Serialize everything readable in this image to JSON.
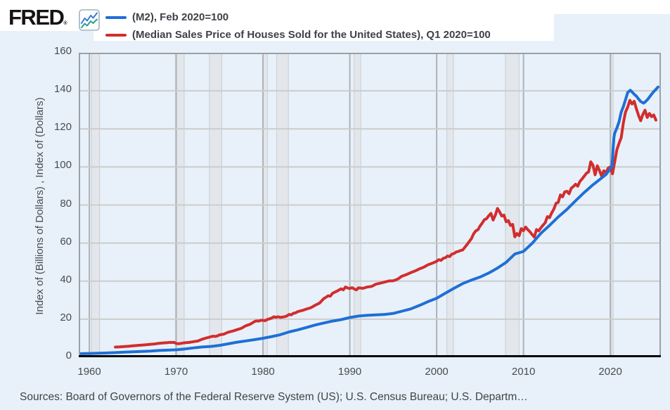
{
  "header": {
    "logo_text": "FRED",
    "registered_mark": "®"
  },
  "legend": [
    {
      "label": "(M2), Feb 2020=100"
    },
    {
      "label": "(Median Sales Price of Houses Sold for the United States), Q1 2020=100"
    }
  ],
  "footer": {
    "sources": "Sources: Board of Governors of the Federal Reserve System (US); U.S. Census Bureau; U.S. Departm…"
  },
  "colors": {
    "background": "#e8f1f9",
    "plot_background": "#ffffff",
    "series_blue": "#1f6fd6",
    "series_red": "#d22d2e",
    "grid_horizontal": "#cccccc",
    "grid_vertical": "#adb2b8",
    "recession_band": "#e3e7ec",
    "recession_band_edge": "#c9ced4",
    "plot_border": "#9aa0a6",
    "axis_line": "#000000",
    "fred_icon_blue": "#3a7bd5",
    "fred_icon_teal": "#2e9e8f"
  },
  "chart_data": {
    "type": "line",
    "title": "",
    "xlabel": "",
    "ylabel": "Index of (Billions of Dollars) , Index of (Dollars)",
    "xlim": [
      1958.78,
      2025.82
    ],
    "ylim": [
      0,
      160
    ],
    "xticks": [
      1960,
      1970,
      1980,
      1990,
      2000,
      2010,
      2020
    ],
    "yticks": [
      0,
      20,
      40,
      60,
      80,
      100,
      120,
      140,
      160
    ],
    "grid": true,
    "legend_position": "top-left",
    "recession_bands": [
      [
        1960.25,
        1961.17
      ],
      [
        1969.92,
        1970.92
      ],
      [
        1973.83,
        1975.25
      ],
      [
        1980.0,
        1980.5
      ],
      [
        1981.58,
        1982.92
      ],
      [
        1990.5,
        1991.25
      ],
      [
        2001.17,
        2001.92
      ],
      [
        2007.92,
        2009.5
      ],
      [
        2020.08,
        2020.33
      ]
    ],
    "series": [
      {
        "name": "(M2), Feb 2020=100",
        "color": "#1f6fd6",
        "points": [
          [
            1959,
            1.9
          ],
          [
            1960,
            2.0
          ],
          [
            1961,
            2.1
          ],
          [
            1962,
            2.27
          ],
          [
            1963,
            2.45
          ],
          [
            1964,
            2.65
          ],
          [
            1965,
            2.86
          ],
          [
            1966,
            3.05
          ],
          [
            1967,
            3.26
          ],
          [
            1968,
            3.53
          ],
          [
            1969,
            3.75
          ],
          [
            1970,
            3.9
          ],
          [
            1971,
            4.36
          ],
          [
            1972,
            4.91
          ],
          [
            1973,
            5.39
          ],
          [
            1974,
            5.7
          ],
          [
            1975,
            6.23
          ],
          [
            1976,
            7.04
          ],
          [
            1977,
            7.9
          ],
          [
            1978,
            8.56
          ],
          [
            1979,
            9.23
          ],
          [
            1980,
            9.97
          ],
          [
            1981,
            10.87
          ],
          [
            1982,
            11.85
          ],
          [
            1983,
            13.31
          ],
          [
            1984,
            14.38
          ],
          [
            1985,
            15.64
          ],
          [
            1986,
            16.92
          ],
          [
            1987,
            17.98
          ],
          [
            1988,
            18.98
          ],
          [
            1989,
            19.76
          ],
          [
            1990,
            20.87
          ],
          [
            1991,
            21.64
          ],
          [
            1992,
            22.04
          ],
          [
            1993,
            22.27
          ],
          [
            1994,
            22.49
          ],
          [
            1995,
            23.03
          ],
          [
            1996,
            24.22
          ],
          [
            1997,
            25.38
          ],
          [
            1998,
            27.19
          ],
          [
            1999,
            29.22
          ],
          [
            2000,
            31.01
          ],
          [
            2001,
            33.66
          ],
          [
            2002,
            36.26
          ],
          [
            2003,
            38.72
          ],
          [
            2004,
            40.53
          ],
          [
            2005,
            42.16
          ],
          [
            2006,
            44.28
          ],
          [
            2007,
            46.87
          ],
          [
            2008,
            49.85
          ],
          [
            2009,
            54.25
          ],
          [
            2010,
            55.61
          ],
          [
            2011,
            59.9
          ],
          [
            2012,
            65.1
          ],
          [
            2013,
            69.3
          ],
          [
            2014,
            73.7
          ],
          [
            2015,
            77.7
          ],
          [
            2016,
            82.2
          ],
          [
            2017,
            86.6
          ],
          [
            2018,
            90.6
          ],
          [
            2019,
            94.2
          ],
          [
            2019.5,
            96.0
          ],
          [
            2020.08,
            99.5
          ],
          [
            2020.17,
            100
          ],
          [
            2020.25,
            104.1
          ],
          [
            2020.33,
            110.2
          ],
          [
            2020.42,
            115.6
          ],
          [
            2020.5,
            117.7
          ],
          [
            2020.75,
            120.4
          ],
          [
            2021,
            123.7
          ],
          [
            2021.25,
            128.8
          ],
          [
            2021.5,
            131.7
          ],
          [
            2021.75,
            135.3
          ],
          [
            2022,
            139.1
          ],
          [
            2022.3,
            140.3
          ],
          [
            2022.5,
            139.4
          ],
          [
            2022.75,
            138.2
          ],
          [
            2023,
            137.2
          ],
          [
            2023.25,
            135.7
          ],
          [
            2023.5,
            134.4
          ],
          [
            2023.83,
            133.5
          ],
          [
            2024,
            134.1
          ],
          [
            2024.25,
            135.2
          ],
          [
            2024.5,
            136.7
          ],
          [
            2024.75,
            138.2
          ],
          [
            2025,
            139.6
          ],
          [
            2025.25,
            140.8
          ],
          [
            2025.5,
            142
          ]
        ]
      },
      {
        "name": "(Median Sales Price of Houses Sold for the United States), Q1 2020=100",
        "color": "#d22d2e",
        "points": [
          [
            1963,
            5.35
          ],
          [
            1963.5,
            5.45
          ],
          [
            1964,
            5.65
          ],
          [
            1964.5,
            5.78
          ],
          [
            1965,
            6.0
          ],
          [
            1965.5,
            6.18
          ],
          [
            1966,
            6.4
          ],
          [
            1966.5,
            6.56
          ],
          [
            1967,
            6.8
          ],
          [
            1967.5,
            7.0
          ],
          [
            1968,
            7.3
          ],
          [
            1968.5,
            7.55
          ],
          [
            1969,
            7.7
          ],
          [
            1969.25,
            7.85
          ],
          [
            1969.5,
            7.75
          ],
          [
            1969.75,
            7.85
          ],
          [
            1970,
            7.25
          ],
          [
            1970.25,
            7.1
          ],
          [
            1970.5,
            7.25
          ],
          [
            1970.75,
            7.45
          ],
          [
            1971,
            7.6
          ],
          [
            1971.5,
            7.8
          ],
          [
            1972,
            8.2
          ],
          [
            1972.5,
            8.55
          ],
          [
            1973,
            9.5
          ],
          [
            1973.5,
            10.15
          ],
          [
            1974,
            10.8
          ],
          [
            1974.25,
            11.1
          ],
          [
            1974.5,
            10.95
          ],
          [
            1974.75,
            11.2
          ],
          [
            1975,
            11.8
          ],
          [
            1975.5,
            12.15
          ],
          [
            1976,
            13.2
          ],
          [
            1976.5,
            13.75
          ],
          [
            1977,
            14.5
          ],
          [
            1977.5,
            15.2
          ],
          [
            1978,
            16.5
          ],
          [
            1978.5,
            17.3
          ],
          [
            1979,
            18.7
          ],
          [
            1979.25,
            19.1
          ],
          [
            1979.5,
            19.0
          ],
          [
            1979.75,
            19.4
          ],
          [
            1980,
            19.4
          ],
          [
            1980.25,
            19.2
          ],
          [
            1980.5,
            19.85
          ],
          [
            1980.75,
            20.2
          ],
          [
            1981,
            20.6
          ],
          [
            1981.25,
            21.3
          ],
          [
            1981.5,
            21.0
          ],
          [
            1981.75,
            21.3
          ],
          [
            1982,
            20.9
          ],
          [
            1982.25,
            21.15
          ],
          [
            1982.5,
            21.3
          ],
          [
            1982.75,
            21.7
          ],
          [
            1983,
            22.5
          ],
          [
            1983.25,
            22.3
          ],
          [
            1983.5,
            23.1
          ],
          [
            1983.75,
            23.3
          ],
          [
            1984,
            24.0
          ],
          [
            1984.5,
            24.55
          ],
          [
            1985,
            25.3
          ],
          [
            1985.5,
            26.0
          ],
          [
            1986,
            27.3
          ],
          [
            1986.5,
            28.4
          ],
          [
            1987,
            30.8
          ],
          [
            1987.25,
            31.5
          ],
          [
            1987.5,
            32.3
          ],
          [
            1987.75,
            32.1
          ],
          [
            1988,
            33.6
          ],
          [
            1988.5,
            34.7
          ],
          [
            1989,
            36.0
          ],
          [
            1989.25,
            35.4
          ],
          [
            1989.5,
            36.9
          ],
          [
            1989.75,
            36.4
          ],
          [
            1990,
            36.1
          ],
          [
            1990.25,
            36.6
          ],
          [
            1990.5,
            35.9
          ],
          [
            1990.75,
            35.4
          ],
          [
            1991,
            36.5
          ],
          [
            1991.5,
            36.2
          ],
          [
            1992,
            36.9
          ],
          [
            1992.5,
            37.2
          ],
          [
            1993,
            38.4
          ],
          [
            1993.5,
            38.9
          ],
          [
            1994,
            39.5
          ],
          [
            1994.5,
            40.1
          ],
          [
            1995,
            40.2
          ],
          [
            1995.5,
            41.0
          ],
          [
            1996,
            42.6
          ],
          [
            1996.5,
            43.4
          ],
          [
            1997,
            44.4
          ],
          [
            1997.5,
            45.3
          ],
          [
            1998,
            46.4
          ],
          [
            1998.5,
            47.3
          ],
          [
            1999,
            48.6
          ],
          [
            1999.5,
            49.4
          ],
          [
            2000,
            50.4
          ],
          [
            2000.25,
            51.3
          ],
          [
            2000.5,
            50.9
          ],
          [
            2000.75,
            52.0
          ],
          [
            2001,
            52.3
          ],
          [
            2001.25,
            53.2
          ],
          [
            2001.5,
            52.9
          ],
          [
            2001.75,
            54.2
          ],
          [
            2002,
            54.5
          ],
          [
            2002.25,
            55.3
          ],
          [
            2002.5,
            55.6
          ],
          [
            2002.75,
            56.1
          ],
          [
            2003,
            56.4
          ],
          [
            2003.25,
            57.8
          ],
          [
            2003.5,
            59.2
          ],
          [
            2003.75,
            60.8
          ],
          [
            2004,
            62.3
          ],
          [
            2004.25,
            64.8
          ],
          [
            2004.5,
            66.4
          ],
          [
            2004.75,
            67.0
          ],
          [
            2005,
            69.0
          ],
          [
            2005.25,
            70.5
          ],
          [
            2005.5,
            72.3
          ],
          [
            2005.75,
            72.8
          ],
          [
            2006,
            74.4
          ],
          [
            2006.25,
            75.6
          ],
          [
            2006.5,
            72.1
          ],
          [
            2006.75,
            74.6
          ],
          [
            2007,
            78.2
          ],
          [
            2007.25,
            76.4
          ],
          [
            2007.5,
            74.2
          ],
          [
            2007.75,
            74.7
          ],
          [
            2008,
            71.2
          ],
          [
            2008.25,
            71.8
          ],
          [
            2008.5,
            69.3
          ],
          [
            2008.75,
            69.8
          ],
          [
            2009,
            63.3
          ],
          [
            2009.25,
            65.0
          ],
          [
            2009.5,
            63.9
          ],
          [
            2009.75,
            67.6
          ],
          [
            2010,
            66.5
          ],
          [
            2010.25,
            68.4
          ],
          [
            2010.5,
            67.0
          ],
          [
            2010.75,
            65.9
          ],
          [
            2011,
            64.4
          ],
          [
            2011.25,
            63.2
          ],
          [
            2011.5,
            67.1
          ],
          [
            2011.75,
            66.4
          ],
          [
            2012,
            68.0
          ],
          [
            2012.25,
            69.4
          ],
          [
            2012.5,
            70.7
          ],
          [
            2012.75,
            73.9
          ],
          [
            2013,
            73.4
          ],
          [
            2013.25,
            75.9
          ],
          [
            2013.5,
            77.9
          ],
          [
            2013.75,
            80.9
          ],
          [
            2014,
            81.4
          ],
          [
            2014.25,
            85.3
          ],
          [
            2014.5,
            84.3
          ],
          [
            2014.75,
            86.9
          ],
          [
            2015,
            87.2
          ],
          [
            2015.25,
            85.9
          ],
          [
            2015.5,
            88.8
          ],
          [
            2015.75,
            89.7
          ],
          [
            2016,
            90.9
          ],
          [
            2016.25,
            89.9
          ],
          [
            2016.5,
            92.4
          ],
          [
            2016.75,
            93.7
          ],
          [
            2017,
            95.2
          ],
          [
            2017.25,
            96.7
          ],
          [
            2017.5,
            97.4
          ],
          [
            2017.75,
            102.7
          ],
          [
            2018,
            100.9
          ],
          [
            2018.25,
            95.9
          ],
          [
            2018.5,
            100.6
          ],
          [
            2018.75,
            98.1
          ],
          [
            2019,
            95.1
          ],
          [
            2019.25,
            98.0
          ],
          [
            2019.5,
            96.8
          ],
          [
            2019.75,
            99.4
          ],
          [
            2020,
            100
          ],
          [
            2020.25,
            96.4
          ],
          [
            2020.5,
            102.6
          ],
          [
            2020.75,
            109.0
          ],
          [
            2021,
            112.4
          ],
          [
            2021.25,
            115.4
          ],
          [
            2021.5,
            123.0
          ],
          [
            2021.75,
            128.8
          ],
          [
            2022,
            131.4
          ],
          [
            2022.25,
            135.0
          ],
          [
            2022.5,
            133.1
          ],
          [
            2022.75,
            134.5
          ],
          [
            2023,
            130.5
          ],
          [
            2023.25,
            127.0
          ],
          [
            2023.5,
            124.3
          ],
          [
            2023.75,
            127.6
          ],
          [
            2024,
            129.8
          ],
          [
            2024.25,
            126.0
          ],
          [
            2024.5,
            128.1
          ],
          [
            2024.75,
            126.4
          ],
          [
            2025,
            127.3
          ],
          [
            2025.25,
            124.6
          ]
        ]
      }
    ]
  }
}
